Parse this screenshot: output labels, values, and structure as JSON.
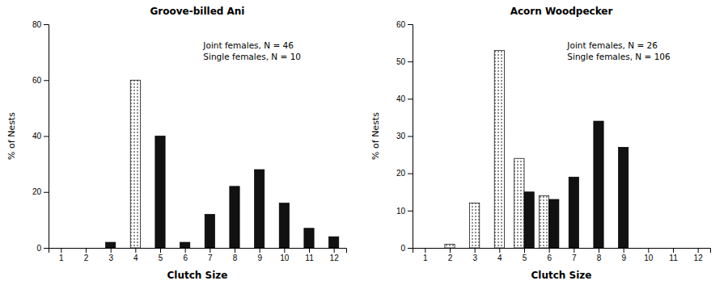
{
  "chart_data": [
    {
      "type": "bar",
      "title": "Groove-billed Ani",
      "annotations": [
        "Joint females, N = 46",
        "Single females, N = 10"
      ],
      "xlabel": "Clutch Size",
      "ylabel": "% of Nests",
      "xlim": [
        0.5,
        12.5
      ],
      "xticks": [
        1,
        2,
        3,
        4,
        5,
        6,
        7,
        8,
        9,
        10,
        11,
        12
      ],
      "ylim": [
        0,
        80
      ],
      "yticks": [
        0,
        20,
        40,
        60,
        80
      ],
      "series": [
        {
          "color": "#ffffff",
          "x": [
            4
          ],
          "values": [
            60
          ]
        },
        {
          "color": "#111111",
          "x": [
            3,
            5,
            6,
            7,
            8,
            9,
            10,
            11,
            12
          ],
          "values": [
            2,
            40,
            2,
            12,
            22,
            28,
            16,
            7,
            4
          ]
        }
      ]
    },
    {
      "type": "bar",
      "title": "Acorn Woodpecker",
      "annotations": [
        "Joint females, N = 26",
        "Single females, N = 106"
      ],
      "xlabel": "Clutch Size",
      "ylabel": "% of Nests",
      "xlim": [
        0.5,
        12.5
      ],
      "xticks": [
        1,
        2,
        3,
        4,
        5,
        6,
        7,
        8,
        9,
        10,
        11,
        12
      ],
      "ylim": [
        0,
        60
      ],
      "yticks": [
        0,
        10,
        20,
        30,
        40,
        50,
        60
      ],
      "series": [
        {
          "color": "#ffffff",
          "x": [
            2,
            3,
            4,
            5,
            6
          ],
          "values": [
            1,
            12,
            53,
            24,
            14
          ]
        },
        {
          "color": "#111111",
          "x": [
            5,
            6,
            7,
            8,
            9
          ],
          "values": [
            15,
            13,
            19,
            34,
            27
          ]
        }
      ]
    }
  ]
}
